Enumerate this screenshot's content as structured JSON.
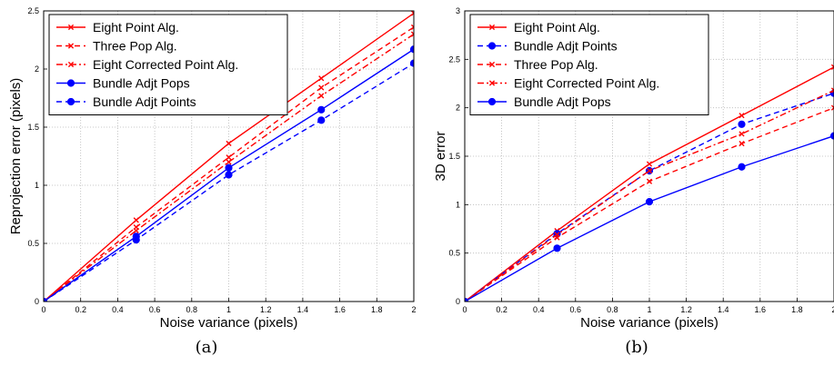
{
  "chart_data": [
    {
      "type": "line",
      "caption": "(a)",
      "xlabel": "Noise variance (pixels)",
      "ylabel": "Reprojection error (pixels)",
      "xlim": [
        0,
        2
      ],
      "ylim": [
        0,
        2.5
      ],
      "xticks": [
        "0",
        "0.2",
        "0.4",
        "0.6",
        "0.8",
        "1",
        "1.2",
        "1.4",
        "1.6",
        "1.8",
        "2"
      ],
      "yticks": [
        "0",
        "0.5",
        "1",
        "1.5",
        "2",
        "2.5"
      ],
      "grid": true,
      "legend_position": "top-left",
      "x": [
        0,
        0.5,
        1,
        1.5,
        2
      ],
      "series": [
        {
          "name": "Eight Point Alg.",
          "values": [
            0,
            0.7,
            1.36,
            1.92,
            2.48
          ],
          "color": "#ff0000",
          "dash": "solid",
          "marker": "x"
        },
        {
          "name": "Three Pop Alg.",
          "values": [
            0,
            0.64,
            1.24,
            1.84,
            2.36
          ],
          "color": "#ff0000",
          "dash": "dashed",
          "marker": "x"
        },
        {
          "name": "Eight Corrected Point Alg.",
          "values": [
            0,
            0.61,
            1.2,
            1.77,
            2.3
          ],
          "color": "#ff0000",
          "dash": "dashdot",
          "marker": "x"
        },
        {
          "name": "Bundle Adjt Pops",
          "values": [
            0,
            0.56,
            1.15,
            1.65,
            2.17
          ],
          "color": "#0000ff",
          "dash": "solid",
          "marker": "dot"
        },
        {
          "name": "Bundle Adjt Points",
          "values": [
            0,
            0.53,
            1.09,
            1.56,
            2.05
          ],
          "color": "#0000ff",
          "dash": "dashed",
          "marker": "dot"
        }
      ]
    },
    {
      "type": "line",
      "caption": "(b)",
      "xlabel": "Noise variance (pixels)",
      "ylabel": "3D error",
      "xlim": [
        0,
        2
      ],
      "ylim": [
        0,
        3
      ],
      "xticks": [
        "0",
        "0.2",
        "0.4",
        "0.6",
        "0.8",
        "1",
        "1.2",
        "1.4",
        "1.6",
        "1.8",
        "2"
      ],
      "yticks": [
        "0",
        "0.5",
        "1",
        "1.5",
        "2",
        "2.5",
        "3"
      ],
      "grid": true,
      "legend_position": "top-left",
      "x": [
        0,
        0.5,
        1,
        1.5,
        2
      ],
      "series": [
        {
          "name": "Eight Point Alg.",
          "values": [
            0,
            0.73,
            1.42,
            1.92,
            2.42
          ],
          "color": "#ff0000",
          "dash": "solid",
          "marker": "x"
        },
        {
          "name": "Bundle Adjt Points",
          "values": [
            0,
            0.7,
            1.35,
            1.83,
            2.15
          ],
          "color": "#0000ff",
          "dash": "dashed",
          "marker": "dot"
        },
        {
          "name": "Three Pop Alg.",
          "values": [
            0,
            0.66,
            1.24,
            1.63,
            2.0
          ],
          "color": "#ff0000",
          "dash": "dashed",
          "marker": "x"
        },
        {
          "name": "Eight Corrected Point Alg.",
          "values": [
            0,
            0.69,
            1.35,
            1.73,
            2.18
          ],
          "color": "#ff0000",
          "dash": "dashdot",
          "marker": "x"
        },
        {
          "name": "Bundle Adjt Pops",
          "values": [
            0,
            0.55,
            1.03,
            1.39,
            1.71
          ],
          "color": "#0000ff",
          "dash": "solid",
          "marker": "dot"
        }
      ]
    }
  ]
}
